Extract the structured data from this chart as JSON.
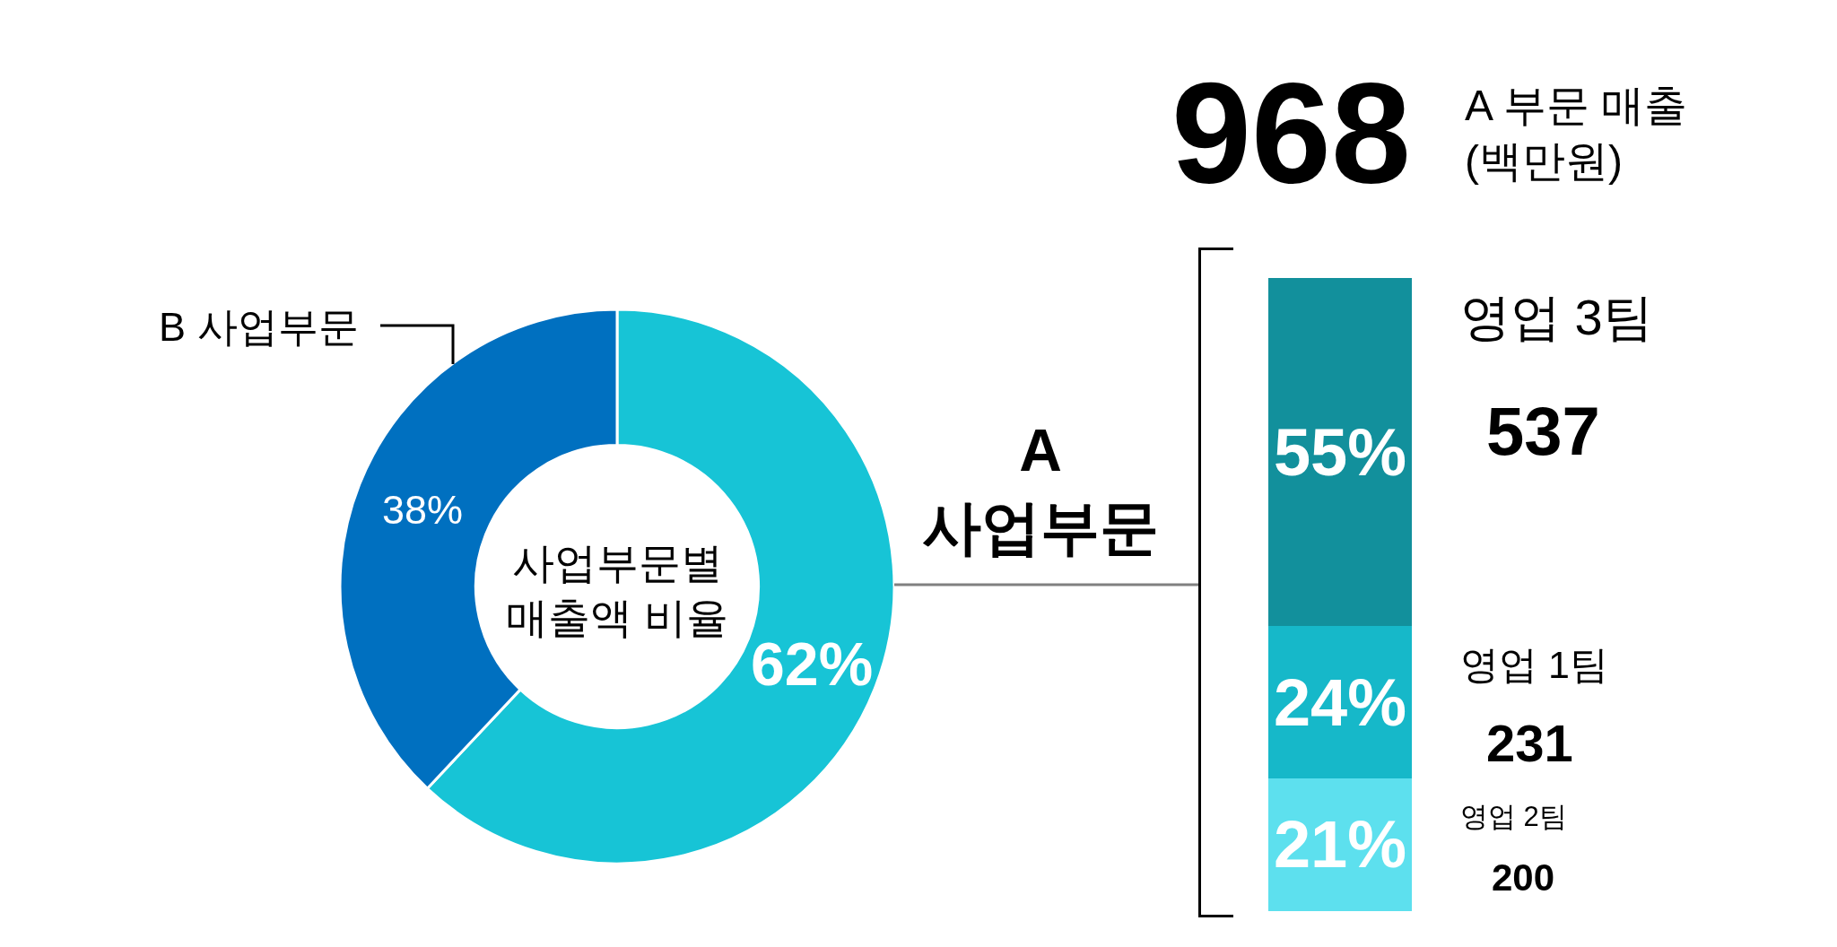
{
  "chart_data": [
    {
      "type": "donut",
      "title": "사업부문별\n매출액 비율",
      "categories": [
        "A\n사업부문",
        "B 사업부문"
      ],
      "values": [
        62,
        38
      ],
      "colors": [
        "#17c4d6",
        "#0070c0"
      ],
      "value_labels": [
        "62%",
        "38%"
      ]
    },
    {
      "type": "bar",
      "title": "968",
      "categories": [
        null
      ],
      "stacked": true,
      "ylim": [
        0,
        100
      ],
      "tick_labels": false,
      "series": [
        {
          "name": "영업 2팀",
          "color": "#5de0ee",
          "values": [
            21
          ],
          "value_labels": [
            "21%"
          ]
        },
        {
          "name": "영업 1팀",
          "color": "#16b8c9",
          "values": [
            24
          ],
          "value_labels": [
            "24%"
          ]
        },
        {
          "name": "영업 3팀",
          "color": "#12909c",
          "values": [
            55
          ],
          "value_labels": [
            "55%"
          ]
        }
      ],
      "annotations": [
        "A 부문 매출\n(백만원)",
        "537",
        "231",
        "200"
      ]
    }
  ]
}
